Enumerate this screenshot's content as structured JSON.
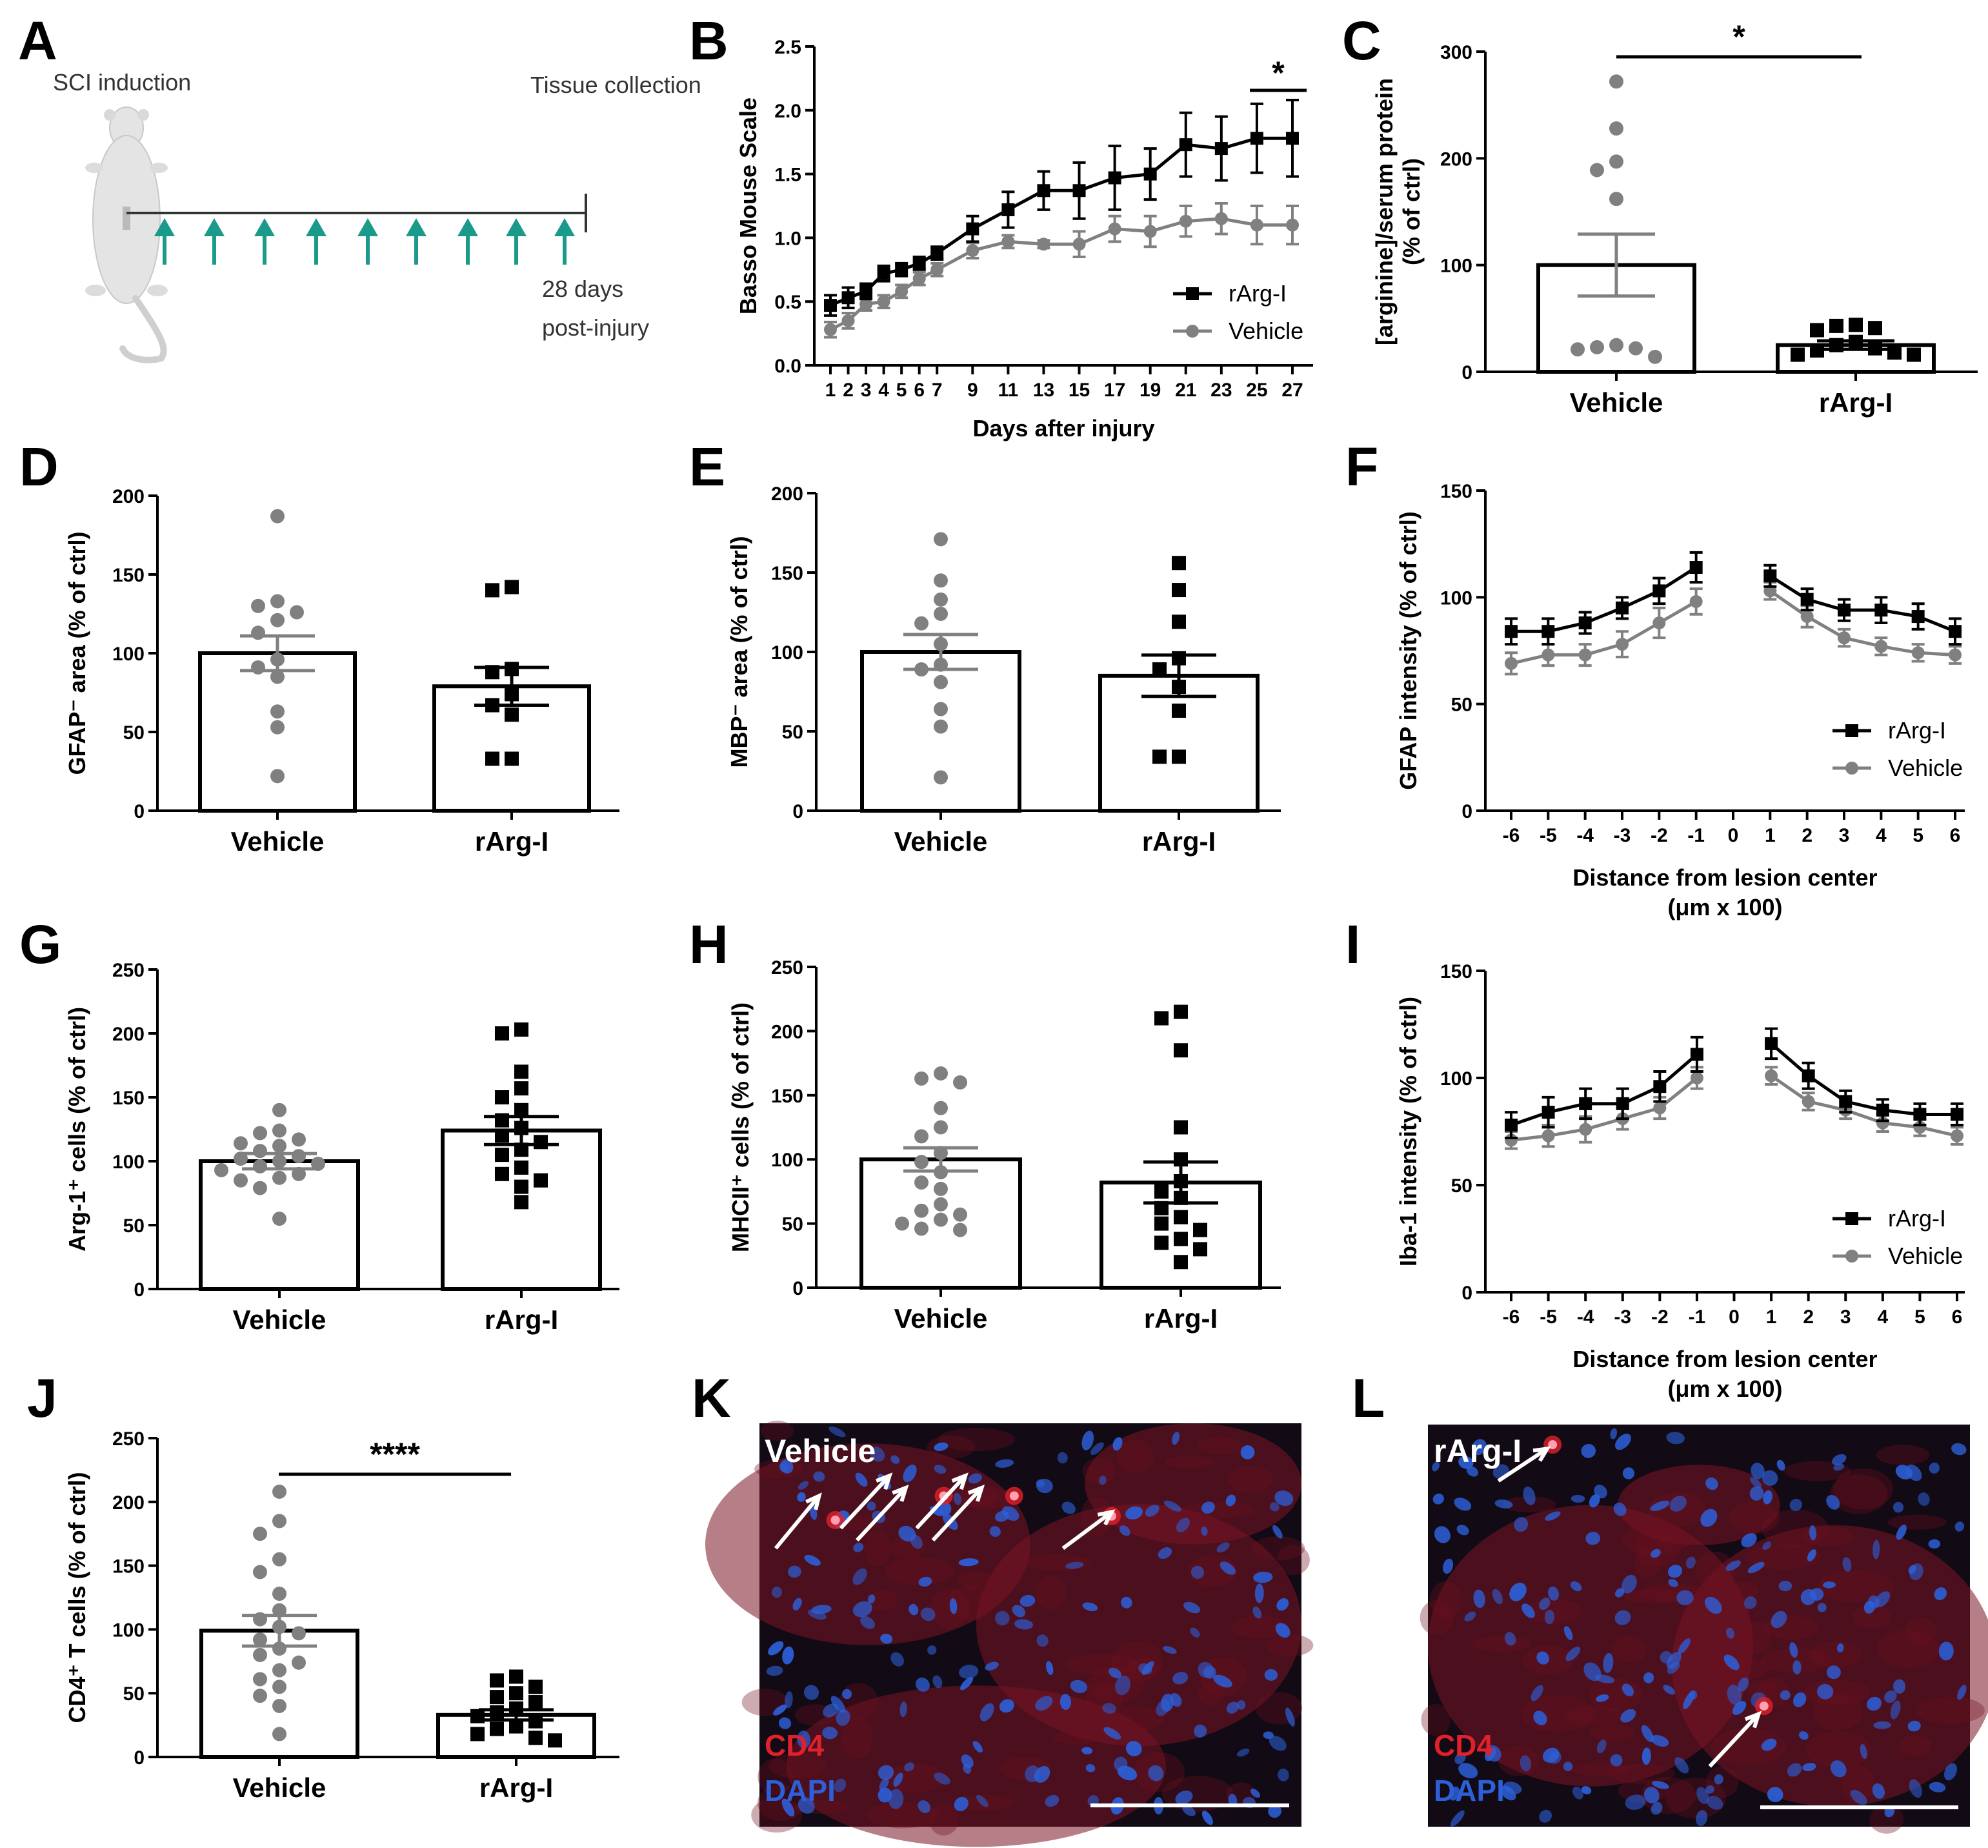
{
  "colors": {
    "rarg": "#000000",
    "vehicle": "#808080",
    "teal": "#1a9a8a",
    "micro_bg": "#120a14",
    "cd4": "#e0202a",
    "dapi": "#2d5fd8"
  },
  "panel_letters": [
    "A",
    "B",
    "C",
    "D",
    "E",
    "F",
    "G",
    "H",
    "I",
    "J",
    "K",
    "L"
  ],
  "timeline": {
    "start": "SCI induction",
    "end": "Tissue collection",
    "note_line1": "28 days",
    "note_line2": "post-injury",
    "arrow_icon": "upward-teal-arrow",
    "mouse_icon": "mouse-icon"
  },
  "micro": {
    "vehicle_title": "Vehicle",
    "rarg_title": "rArg-I",
    "cd4": "CD4",
    "dapi": "DAPI"
  },
  "chart_data": [
    {
      "id": "B",
      "type": "line",
      "title": "",
      "xlabel": "Days after injury",
      "ylabel": "Basso Mouse Scale",
      "ylim": [
        0,
        2.5
      ],
      "yticks": [
        "0.0",
        "0.5",
        "1.0",
        "1.5",
        "2.0",
        "2.5"
      ],
      "x": [
        1,
        2,
        3,
        4,
        5,
        6,
        7,
        9,
        11,
        13,
        15,
        17,
        19,
        21,
        23,
        25,
        27
      ],
      "xticks": [
        "1",
        "2",
        "3",
        "4",
        "5",
        "6",
        "7",
        "9",
        "11",
        "13",
        "15",
        "17",
        "19",
        "21",
        "23",
        "25",
        "27"
      ],
      "series": [
        {
          "name": "rArg-I",
          "marker": "square",
          "values": [
            0.47,
            0.53,
            0.58,
            0.72,
            0.75,
            0.8,
            0.88,
            1.07,
            1.22,
            1.37,
            1.37,
            1.47,
            1.5,
            1.73,
            1.7,
            1.78,
            1.78
          ],
          "errors": [
            0.08,
            0.08,
            0.06,
            0.06,
            0.05,
            0.05,
            0.05,
            0.1,
            0.14,
            0.15,
            0.22,
            0.25,
            0.2,
            0.25,
            0.25,
            0.27,
            0.3
          ]
        },
        {
          "name": "Vehicle",
          "marker": "circle",
          "values": [
            0.28,
            0.35,
            0.48,
            0.5,
            0.58,
            0.68,
            0.75,
            0.9,
            0.97,
            0.95,
            0.95,
            1.07,
            1.05,
            1.13,
            1.15,
            1.1,
            1.1
          ],
          "errors": [
            0.06,
            0.06,
            0.05,
            0.05,
            0.05,
            0.05,
            0.05,
            0.06,
            0.05,
            0.03,
            0.1,
            0.1,
            0.12,
            0.12,
            0.12,
            0.15,
            0.15
          ]
        }
      ],
      "annotation": "*"
    },
    {
      "id": "C",
      "type": "bar",
      "ylabel_line1": "[arginine]/serum protein",
      "ylabel_line2": "(% of ctrl)",
      "categories": [
        "Vehicle",
        "rArg-I"
      ],
      "ylim": [
        0,
        300
      ],
      "yticks": [
        "0",
        "100",
        "200",
        "300"
      ],
      "means": [
        100,
        25
      ],
      "sem": [
        29,
        4
      ],
      "annotation": "*",
      "points": [
        [
          272,
          228,
          197,
          189,
          162,
          25,
          23,
          22,
          21,
          14
        ],
        [
          44,
          43,
          41,
          39,
          28,
          25,
          22,
          20,
          18,
          16,
          16
        ]
      ]
    },
    {
      "id": "D",
      "type": "bar",
      "ylabel": "GFAP⁻ area (% of ctrl)",
      "categories": [
        "Vehicle",
        "rArg-I"
      ],
      "ylim": [
        0,
        200
      ],
      "yticks": [
        "0",
        "50",
        "100",
        "150",
        "200"
      ],
      "means": [
        100,
        79
      ],
      "sem": [
        11,
        12
      ],
      "points": [
        [
          187,
          133,
          130,
          126,
          121,
          113,
          96,
          91,
          85,
          63,
          53,
          22
        ],
        [
          142,
          140,
          90,
          88,
          74,
          67,
          61,
          33,
          33
        ]
      ]
    },
    {
      "id": "E",
      "type": "bar",
      "ylabel": "MBP⁻ area (% of ctrl)",
      "categories": [
        "Vehicle",
        "rArg-I"
      ],
      "ylim": [
        0,
        200
      ],
      "yticks": [
        "0",
        "50",
        "100",
        "150",
        "200"
      ],
      "means": [
        100,
        85
      ],
      "sem": [
        11,
        13
      ],
      "points": [
        [
          171,
          145,
          133,
          124,
          118,
          105,
          92,
          89,
          81,
          64,
          53,
          21
        ],
        [
          156,
          139,
          119,
          96,
          89,
          78,
          63,
          34,
          34
        ]
      ]
    },
    {
      "id": "F",
      "type": "line",
      "ylabel": "GFAP intensity (% of ctrl)",
      "xlabel_line1": "Distance from lesion center",
      "xlabel_line2": "(μm x 100)",
      "ylim": [
        0,
        150
      ],
      "yticks": [
        "0",
        "50",
        "100",
        "150"
      ],
      "x": [
        -6,
        -5,
        -4,
        -3,
        -2,
        -1,
        0,
        1,
        2,
        3,
        4,
        5,
        6
      ],
      "xticks": [
        "-6",
        "-5",
        "-4",
        "-3",
        "-2",
        "-1",
        "0",
        "1",
        "2",
        "3",
        "4",
        "5",
        "6"
      ],
      "series": [
        {
          "name": "rArg-I",
          "marker": "square",
          "values": [
            84,
            84,
            88,
            95,
            103,
            114,
            null,
            110,
            99,
            94,
            94,
            91,
            84
          ],
          "errors": [
            6,
            6,
            5,
            5,
            6,
            7,
            null,
            5,
            5,
            5,
            6,
            6,
            6
          ]
        },
        {
          "name": "Vehicle",
          "marker": "circle",
          "values": [
            69,
            73,
            73,
            78,
            88,
            98,
            null,
            103,
            91,
            81,
            77,
            74,
            73
          ],
          "errors": [
            5,
            5,
            5,
            6,
            7,
            6,
            null,
            4,
            5,
            4,
            4,
            4,
            4
          ]
        }
      ]
    },
    {
      "id": "G",
      "type": "bar",
      "ylabel": "Arg-1⁺ cells (% of ctrl)",
      "categories": [
        "Vehicle",
        "rArg-I"
      ],
      "ylim": [
        0,
        250
      ],
      "yticks": [
        "0",
        "50",
        "100",
        "150",
        "200",
        "250"
      ],
      "means": [
        100,
        124
      ],
      "sem": [
        6,
        11
      ],
      "points": [
        [
          140,
          124,
          122,
          117,
          114,
          112,
          108,
          104,
          102,
          100,
          98,
          96,
          93,
          90,
          87,
          85,
          79,
          55
        ],
        [
          203,
          200,
          170,
          157,
          150,
          140,
          132,
          126,
          120,
          115,
          109,
          105,
          95,
          90,
          85,
          80,
          68
        ]
      ]
    },
    {
      "id": "H",
      "type": "bar",
      "ylabel": "MHCII⁺ cells (% of ctrl)",
      "categories": [
        "Vehicle",
        "rArg-I"
      ],
      "ylim": [
        0,
        250
      ],
      "yticks": [
        "0",
        "50",
        "100",
        "150",
        "200",
        "250"
      ],
      "means": [
        100,
        82
      ],
      "sem": [
        9,
        16
      ],
      "points": [
        [
          167,
          163,
          160,
          140,
          125,
          118,
          105,
          98,
          90,
          82,
          77,
          65,
          60,
          57,
          53,
          50,
          46,
          45
        ],
        [
          215,
          210,
          185,
          125,
          100,
          83,
          75,
          70,
          62,
          55,
          50,
          45,
          38,
          35,
          30,
          20
        ]
      ]
    },
    {
      "id": "I",
      "type": "line",
      "ylabel": "Iba-1 intensity (% of ctrl)",
      "xlabel_line1": "Distance from lesion center",
      "xlabel_line2": "(μm x 100)",
      "ylim": [
        0,
        150
      ],
      "yticks": [
        "0",
        "50",
        "100",
        "150"
      ],
      "x": [
        -6,
        -5,
        -4,
        -3,
        -2,
        -1,
        0,
        1,
        2,
        3,
        4,
        5,
        6
      ],
      "xticks": [
        "-6",
        "-5",
        "-4",
        "-3",
        "-2",
        "-1",
        "0",
        "1",
        "2",
        "3",
        "4",
        "5",
        "6"
      ],
      "series": [
        {
          "name": "rArg-I",
          "marker": "square",
          "values": [
            78,
            84,
            88,
            88,
            96,
            111,
            null,
            116,
            101,
            89,
            85,
            83,
            83
          ],
          "errors": [
            6,
            7,
            7,
            7,
            7,
            8,
            null,
            7,
            6,
            5,
            5,
            5,
            5
          ]
        },
        {
          "name": "Vehicle",
          "marker": "circle",
          "values": [
            71,
            73,
            76,
            81,
            86,
            100,
            null,
            101,
            89,
            85,
            79,
            77,
            73
          ],
          "errors": [
            4,
            5,
            6,
            5,
            5,
            5,
            null,
            4,
            4,
            4,
            4,
            4,
            4
          ]
        }
      ]
    },
    {
      "id": "J",
      "type": "bar",
      "ylabel": "CD4⁺ T cells (% of ctrl)",
      "categories": [
        "Vehicle",
        "rArg-I"
      ],
      "ylim": [
        0,
        250
      ],
      "yticks": [
        "0",
        "50",
        "100",
        "150",
        "200",
        "250"
      ],
      "means": [
        99,
        33
      ],
      "sem": [
        12,
        4
      ],
      "annotation": "****",
      "points": [
        [
          208,
          185,
          175,
          155,
          145,
          128,
          115,
          108,
          102,
          97,
          92,
          85,
          80,
          74,
          68,
          61,
          55,
          48,
          40,
          18
        ],
        [
          63,
          60,
          55,
          50,
          47,
          43,
          38,
          35,
          32,
          28,
          24,
          22,
          18,
          15,
          13
        ]
      ]
    }
  ]
}
